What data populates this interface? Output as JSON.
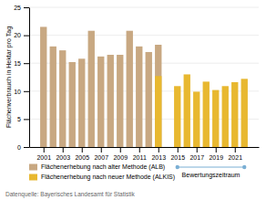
{
  "chart_data": {
    "type": "bar",
    "y_label": "Flächenverbrauch in Hektar pro Tag",
    "series": [
      {
        "name": "Flächenerhebung nach alter Methode (ALB)",
        "color": "#c8a882",
        "x": [
          2001,
          2002,
          2003,
          2004,
          2005,
          2006,
          2007,
          2008,
          2009,
          2010,
          2011,
          2012,
          2013
        ],
        "values": [
          21.5,
          18.0,
          17.3,
          15.2,
          15.8,
          20.8,
          16.2,
          16.5,
          16.5,
          20.8,
          18.0,
          17.0,
          18.3
        ]
      },
      {
        "name": "Flächenerhebung nach neuer Methode (ALKIS)",
        "color": "#e8b830",
        "x": [
          2013,
          2015,
          2016,
          2017,
          2018,
          2019,
          2020,
          2021,
          2022
        ],
        "values": [
          12.7,
          10.9,
          13.0,
          9.9,
          11.7,
          10.2,
          10.9,
          11.6,
          12.2
        ]
      }
    ],
    "xlim": [
      1999.5,
      2023.5
    ],
    "xticks": [
      2001,
      2003,
      2005,
      2007,
      2009,
      2011,
      2013,
      2015,
      2017,
      2019,
      2021
    ],
    "ylim": [
      0,
      25
    ],
    "yticks": [
      0,
      5,
      10,
      15,
      20,
      25
    ],
    "grid": true,
    "legend": "bottom",
    "annotations": [
      {
        "text": "Bewertungszeitraum",
        "x": [
          2015,
          2022
        ],
        "color": "#7bafd4"
      }
    ],
    "source": "Datenquelle: Bayerisches Landesamt für Statistik"
  }
}
